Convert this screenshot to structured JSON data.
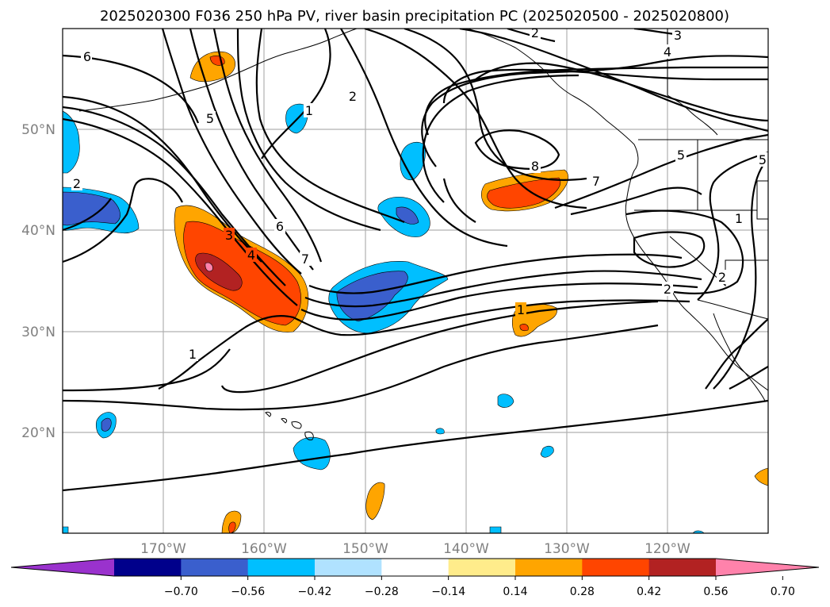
{
  "title": "2025020300 F036 250 hPa PV, river basin precipitation PC (2025020500 - 2025020800)",
  "map": {
    "lon_labels": [
      "170°W",
      "160°W",
      "150°W",
      "140°W",
      "130°W",
      "120°W"
    ],
    "lat_labels": [
      "50°N",
      "40°N",
      "30°N",
      "20°N"
    ],
    "contour_labels": [
      "6",
      "2",
      "3",
      "2",
      "5",
      "1",
      "2",
      "4",
      "5",
      "3",
      "4",
      "6",
      "7",
      "1",
      "1",
      "8",
      "7",
      "5",
      "2",
      "1",
      "2"
    ]
  },
  "colorbar": {
    "tick_labels": [
      "−0.70",
      "−0.56",
      "−0.42",
      "−0.28",
      "−0.14",
      "0.14",
      "0.28",
      "0.42",
      "0.56",
      "0.70"
    ],
    "colors": [
      "#9a32cd",
      "#00008b",
      "#3a5fcd",
      "#00bfff",
      "#b0e2ff",
      "#ffffff",
      "#ffec8b",
      "#ffa500",
      "#ff4500",
      "#b22222",
      "#ff82ab"
    ],
    "extend": "both"
  }
}
